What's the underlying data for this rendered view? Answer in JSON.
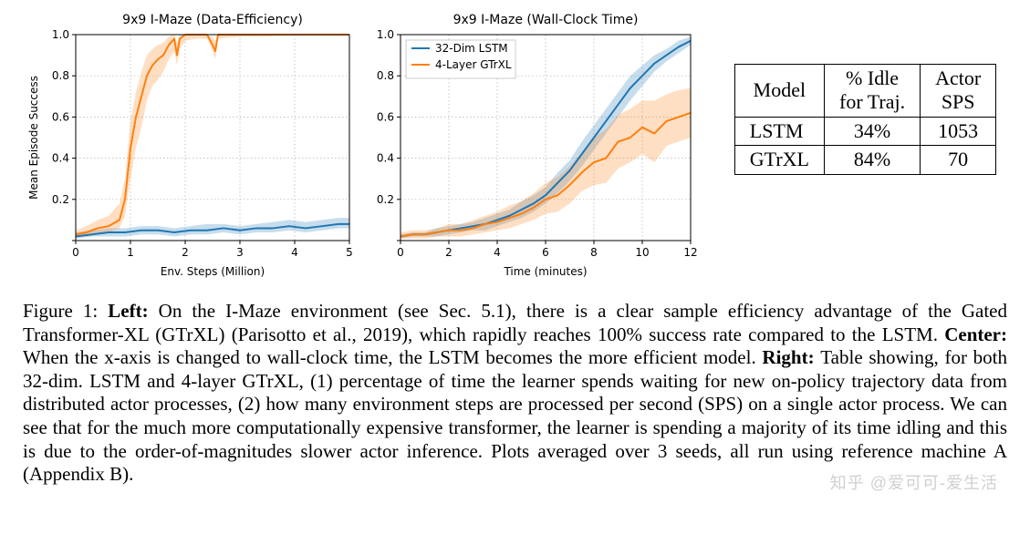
{
  "chart_left": {
    "type": "line",
    "title": "9x9 I-Maze (Data-Efficiency)",
    "xlabel": "Env. Steps (Million)",
    "ylabel": "Mean Episode Success",
    "xlim": [
      0,
      5
    ],
    "ylim": [
      0,
      1.0
    ],
    "xticks": [
      0,
      1,
      2,
      3,
      4,
      5
    ],
    "yticks": [
      0.0,
      0.2,
      0.4,
      0.6,
      0.8,
      1.0
    ],
    "ytick_labels": [
      "",
      "0.2",
      "0.4",
      "0.6",
      "0.8",
      "1.0"
    ],
    "grid_color": "#b0b0b0",
    "background_color": "#ffffff",
    "line_width": 2,
    "shade_opacity": 0.25,
    "series": [
      {
        "name": "32-Dim LSTM",
        "color": "#1f77b4",
        "x": [
          0.0,
          0.3,
          0.6,
          0.9,
          1.2,
          1.5,
          1.8,
          2.1,
          2.4,
          2.7,
          3.0,
          3.3,
          3.6,
          3.9,
          4.2,
          4.5,
          4.8,
          5.0
        ],
        "y": [
          0.02,
          0.03,
          0.04,
          0.04,
          0.05,
          0.05,
          0.04,
          0.05,
          0.05,
          0.06,
          0.05,
          0.06,
          0.06,
          0.07,
          0.06,
          0.07,
          0.08,
          0.08
        ],
        "lo": [
          0.01,
          0.02,
          0.02,
          0.02,
          0.03,
          0.03,
          0.02,
          0.03,
          0.03,
          0.04,
          0.03,
          0.04,
          0.04,
          0.05,
          0.04,
          0.05,
          0.06,
          0.06
        ],
        "hi": [
          0.04,
          0.05,
          0.06,
          0.06,
          0.07,
          0.07,
          0.06,
          0.07,
          0.08,
          0.08,
          0.07,
          0.08,
          0.09,
          0.1,
          0.09,
          0.1,
          0.11,
          0.11
        ]
      },
      {
        "name": "4-Layer GTrXL",
        "color": "#ff7f0e",
        "x": [
          0.0,
          0.2,
          0.4,
          0.6,
          0.8,
          0.9,
          1.0,
          1.1,
          1.2,
          1.3,
          1.4,
          1.5,
          1.6,
          1.7,
          1.8,
          1.85,
          1.9,
          2.0,
          2.2,
          2.4,
          2.5,
          2.55,
          2.6,
          3.0,
          3.5,
          4.0,
          4.5,
          5.0
        ],
        "y": [
          0.03,
          0.04,
          0.06,
          0.07,
          0.1,
          0.2,
          0.45,
          0.6,
          0.7,
          0.8,
          0.85,
          0.88,
          0.9,
          0.95,
          0.98,
          0.9,
          0.98,
          1.0,
          1.0,
          1.0,
          0.95,
          0.92,
          1.0,
          1.0,
          1.0,
          1.0,
          1.0,
          1.0
        ],
        "lo": [
          0.02,
          0.02,
          0.03,
          0.04,
          0.06,
          0.12,
          0.3,
          0.45,
          0.55,
          0.68,
          0.75,
          0.78,
          0.82,
          0.88,
          0.92,
          0.85,
          0.93,
          0.97,
          0.98,
          0.98,
          0.92,
          0.88,
          0.98,
          0.99,
          0.99,
          1.0,
          1.0,
          1.0
        ],
        "hi": [
          0.05,
          0.07,
          0.1,
          0.12,
          0.18,
          0.3,
          0.58,
          0.72,
          0.82,
          0.9,
          0.93,
          0.95,
          0.96,
          0.99,
          1.0,
          0.96,
          1.0,
          1.0,
          1.0,
          1.0,
          0.99,
          0.97,
          1.0,
          1.0,
          1.0,
          1.0,
          1.0,
          1.0
        ]
      }
    ]
  },
  "chart_right": {
    "type": "line",
    "title": "9x9 I-Maze (Wall-Clock Time)",
    "xlabel": "Time (minutes)",
    "ylabel": "",
    "xlim": [
      0,
      12
    ],
    "ylim": [
      0,
      1.0
    ],
    "xticks": [
      0,
      2,
      4,
      6,
      8,
      10,
      12
    ],
    "yticks": [
      0.0,
      0.2,
      0.4,
      0.6,
      0.8,
      1.0
    ],
    "ytick_labels": [
      "",
      "0.2",
      "0.4",
      "0.6",
      "0.8",
      "1.0"
    ],
    "grid_color": "#b0b0b0",
    "background_color": "#ffffff",
    "line_width": 2,
    "shade_opacity": 0.25,
    "legend": {
      "position": "upper-left",
      "items": [
        {
          "label": "32-Dim LSTM",
          "color": "#1f77b4"
        },
        {
          "label": "4-Layer GTrXL",
          "color": "#ff7f0e"
        }
      ]
    },
    "series": [
      {
        "name": "32-Dim LSTM",
        "color": "#1f77b4",
        "x": [
          0.0,
          0.5,
          1.0,
          1.5,
          2.0,
          2.5,
          3.0,
          3.5,
          4.0,
          4.5,
          5.0,
          5.5,
          6.0,
          6.5,
          7.0,
          7.5,
          8.0,
          8.5,
          9.0,
          9.5,
          10.0,
          10.5,
          11.0,
          11.5,
          12.0
        ],
        "y": [
          0.02,
          0.03,
          0.03,
          0.04,
          0.05,
          0.06,
          0.07,
          0.08,
          0.1,
          0.12,
          0.15,
          0.18,
          0.22,
          0.28,
          0.34,
          0.42,
          0.5,
          0.58,
          0.66,
          0.74,
          0.8,
          0.86,
          0.9,
          0.94,
          0.97
        ],
        "lo": [
          0.01,
          0.02,
          0.02,
          0.02,
          0.03,
          0.04,
          0.05,
          0.05,
          0.07,
          0.09,
          0.11,
          0.14,
          0.18,
          0.23,
          0.29,
          0.36,
          0.44,
          0.52,
          0.6,
          0.68,
          0.75,
          0.82,
          0.87,
          0.91,
          0.95
        ],
        "hi": [
          0.03,
          0.04,
          0.04,
          0.06,
          0.07,
          0.08,
          0.09,
          0.11,
          0.13,
          0.15,
          0.19,
          0.22,
          0.26,
          0.33,
          0.39,
          0.48,
          0.56,
          0.64,
          0.72,
          0.8,
          0.85,
          0.9,
          0.93,
          0.97,
          0.99
        ]
      },
      {
        "name": "4-Layer GTrXL",
        "color": "#ff7f0e",
        "x": [
          0.0,
          0.5,
          1.0,
          1.5,
          2.0,
          2.5,
          3.0,
          3.5,
          4.0,
          4.5,
          5.0,
          5.5,
          6.0,
          6.5,
          7.0,
          7.5,
          8.0,
          8.5,
          9.0,
          9.5,
          10.0,
          10.5,
          11.0,
          11.5,
          12.0
        ],
        "y": [
          0.02,
          0.03,
          0.03,
          0.04,
          0.05,
          0.05,
          0.06,
          0.08,
          0.09,
          0.11,
          0.13,
          0.16,
          0.2,
          0.22,
          0.27,
          0.33,
          0.38,
          0.4,
          0.48,
          0.5,
          0.55,
          0.52,
          0.58,
          0.6,
          0.62
        ],
        "lo": [
          0.01,
          0.01,
          0.01,
          0.02,
          0.02,
          0.02,
          0.03,
          0.04,
          0.05,
          0.06,
          0.08,
          0.1,
          0.13,
          0.14,
          0.18,
          0.24,
          0.27,
          0.28,
          0.35,
          0.38,
          0.42,
          0.38,
          0.46,
          0.48,
          0.5
        ],
        "hi": [
          0.04,
          0.05,
          0.05,
          0.06,
          0.08,
          0.08,
          0.1,
          0.12,
          0.14,
          0.17,
          0.19,
          0.23,
          0.28,
          0.31,
          0.36,
          0.43,
          0.5,
          0.54,
          0.61,
          0.64,
          0.68,
          0.68,
          0.71,
          0.73,
          0.74
        ]
      }
    ]
  },
  "table": {
    "columns": [
      "Model",
      "% Idle\nfor Traj.",
      "Actor\nSPS"
    ],
    "rows": [
      [
        "LSTM",
        "34%",
        "1053"
      ],
      [
        "GTrXL",
        "84%",
        "70"
      ]
    ]
  },
  "caption": {
    "fig_label": "Figure 1: ",
    "parts": [
      {
        "bold": true,
        "text": "Left: "
      },
      {
        "bold": false,
        "text": "On the I-Maze environment (see Sec. 5.1), there is a clear sample efficiency advantage of the Gated Transformer-XL (GTrXL) (Parisotto et al., 2019), which rapidly reaches 100% success rate compared to the LSTM. "
      },
      {
        "bold": true,
        "text": "Center: "
      },
      {
        "bold": false,
        "text": "When the x-axis is changed to wall-clock time, the LSTM becomes the more efficient model. "
      },
      {
        "bold": true,
        "text": "Right: "
      },
      {
        "bold": false,
        "text": "Table showing, for both 32-dim. LSTM and 4-layer GTrXL, (1) percentage of time the learner spends waiting for new on-policy trajectory data from distributed actor processes, (2) how many environment steps are processed per second (SPS) on a single actor process. We can see that for the much more computationally expensive transformer, the learner is spending a majority of its time idling and this is due to the order-of-magnitudes slower actor inference. Plots averaged over 3 seeds, all run using reference machine A (Appendix B)."
      }
    ]
  },
  "watermark": "知乎 @爱可可-爱生活"
}
